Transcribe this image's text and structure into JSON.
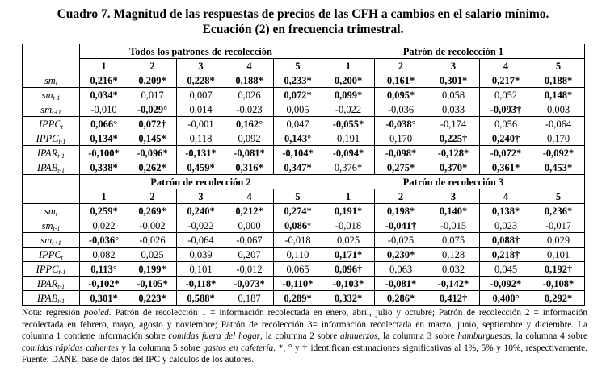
{
  "title": [
    "Cuadro 7. Magnitud de las respuestas de precios de las CFH a cambios en el salario mínimo.",
    "Ecuación (2) en frecuencia trimestral."
  ],
  "columns": [
    "1",
    "2",
    "3",
    "4",
    "5"
  ],
  "row_labels": [
    {
      "base": "sm",
      "sub": "t"
    },
    {
      "base": "sm",
      "sub": "t-1"
    },
    {
      "base": "sm",
      "sub": "t+1"
    },
    {
      "base": "IPPC",
      "sub": "t"
    },
    {
      "base": "IPPC",
      "sub": "t-1"
    },
    {
      "base": "IPAR",
      "sub": "t-1"
    },
    {
      "base": "IPAB",
      "sub": "t-1"
    }
  ],
  "blocks": [
    {
      "left": {
        "title": "Todos los patrones de recolección",
        "rows": [
          [
            "0,216*",
            "0,209*",
            "0,228*",
            "0,188*",
            "0,233*"
          ],
          [
            "0,034*",
            "0,017",
            "0,007",
            "0,026",
            "0,072*"
          ],
          [
            "-0,010",
            "-0,029°",
            "0,014",
            "-0,023",
            "0,005"
          ],
          [
            "0,066°",
            "0,072†",
            "-0,001",
            "0,162°",
            "0,047"
          ],
          [
            "0,134*",
            "0,145*",
            "0,118",
            "0,092",
            "0,143°"
          ],
          [
            "-0,100*",
            "-0,096*",
            "-0,131*",
            "-0,081*",
            "-0,104*"
          ],
          [
            "0,338*",
            "0,262*",
            "0,459*",
            "0,316*",
            "0,347*"
          ]
        ]
      },
      "right": {
        "title": "Patrón de recolección 1",
        "rows": [
          [
            "0,200*",
            "0,161*",
            "0,301*",
            "0,217*",
            "0,188*"
          ],
          [
            "0,099*",
            "0,095*",
            "0,058",
            "0,052",
            "0,148*"
          ],
          [
            "-0,022",
            "-0,036",
            "0,033",
            "-0,093†",
            "0,003"
          ],
          [
            "-0,055*",
            "-0,038°",
            "-0,174",
            "0,056",
            "-0,064"
          ],
          [
            "0,191",
            "0,170",
            "0,225†",
            "0,240†",
            "0,170"
          ],
          [
            "-0,094*",
            "-0,098*",
            "-0,128*",
            "-0,072*",
            "-0,092*"
          ],
          [
            "0,376*",
            "0,275*",
            "0,370*",
            "0,361*",
            "0,453*"
          ]
        ]
      }
    },
    {
      "left": {
        "title": "Patrón de recolección 2",
        "rows": [
          [
            "0,259*",
            "0,269*",
            "0,240*",
            "0,212*",
            "0,274*"
          ],
          [
            "0,022",
            "-0,002",
            "-0,022",
            "0,000",
            "0,086°"
          ],
          [
            "-0,036°",
            "-0,026",
            "-0,064",
            "-0,067",
            "-0,018"
          ],
          [
            "0,082",
            "0,025",
            "0,039",
            "0,207",
            "0,110"
          ],
          [
            "0,113°",
            "0,199*",
            "0,101",
            "-0,012",
            "0,065"
          ],
          [
            "-0,102*",
            "-0,105*",
            "-0,118*",
            "-0,073*",
            "-0,110*"
          ],
          [
            "0,301*",
            "0,223*",
            "0,588*",
            "0,187",
            "0,289*"
          ]
        ]
      },
      "right": {
        "title": "Patrón de recolección 3",
        "rows": [
          [
            "0,191*",
            "0,198*",
            "0,140*",
            "0,138*",
            "0,236*"
          ],
          [
            "-0,018",
            "-0,041†",
            "-0,015",
            "0,023",
            "-0,017"
          ],
          [
            "0,025",
            "-0,025",
            "0,075",
            "0,088†",
            "0,029"
          ],
          [
            "0,171*",
            "0,230*",
            "0,128",
            "0,218†",
            "0,101"
          ],
          [
            "0,096†",
            "0,063",
            "0,032",
            "0,045",
            "0,192†"
          ],
          [
            "-0,103*",
            "-0,081*",
            "-0,142*",
            "-0,092*",
            "-0,108*"
          ],
          [
            "0,332*",
            "0,286*",
            "0,412†",
            "0,400°",
            "0,292*"
          ]
        ]
      }
    }
  ],
  "note": [
    {
      "t": "Nota: regresión "
    },
    {
      "t": "pooled",
      "i": true
    },
    {
      "t": ". Patrón de recolección 1 = información recolectada en enero, abril, julio y octubre; Patrón de recolección 2 = información recolectada en febrero, mayo, agosto y noviembre; Patrón de recolección 3= información recolectada en marzo, junio, septiembre y diciembre. La columna 1 contiene información sobre "
    },
    {
      "t": "comidas fuera del hogar",
      "i": true
    },
    {
      "t": ", la columna 2 sobre "
    },
    {
      "t": "almuerzos",
      "i": true
    },
    {
      "t": ", la columna 3 sobre "
    },
    {
      "t": "hamburguesas",
      "i": true
    },
    {
      "t": ", la columna 4 sobre "
    },
    {
      "t": "comidas rápidas calientes",
      "i": true
    },
    {
      "t": " y la columna 5 sobre "
    },
    {
      "t": "gastos en cafetería",
      "i": true
    },
    {
      "t": ". *, ° y † identifican estimaciones significativas al 1%, 5% y 10%, respectivamente. Fuente: DANE, base de datos del IPC y cálculos de los autores."
    }
  ]
}
